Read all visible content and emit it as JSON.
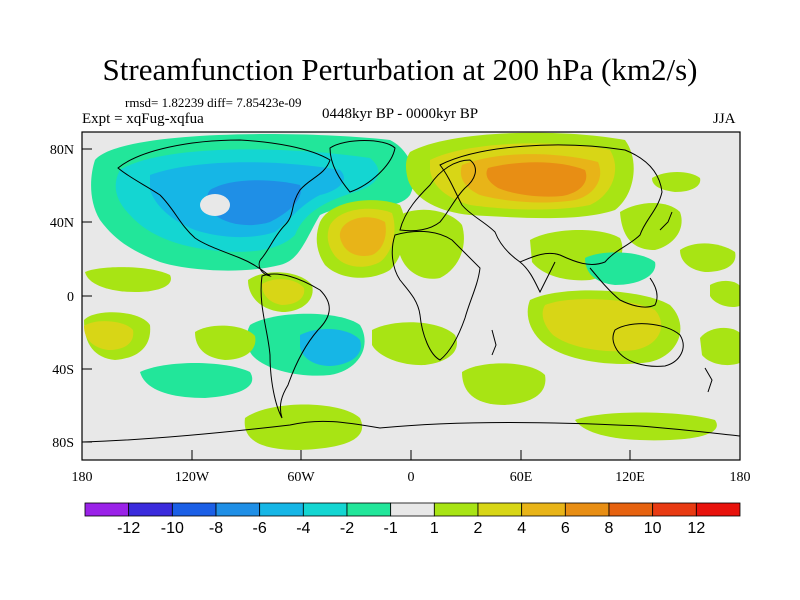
{
  "title": "Streamfunction Perturbation at 200 hPa (km2/s)",
  "stats": {
    "rmsd_line": "rmsd= 1.82239 diff= 7.85423e-09"
  },
  "experiment": "Expt = xqFug-xqfua",
  "period": "0448kyr BP - 0000kyr BP",
  "season": "JJA",
  "axes": {
    "y_labels": [
      "80N",
      "40N",
      "0",
      "40S",
      "80S"
    ],
    "x_labels": [
      "180",
      "120W",
      "60W",
      "0",
      "60E",
      "120E",
      "180"
    ]
  },
  "colorbar": {
    "labels": [
      "-12",
      "-10",
      "-8",
      "-6",
      "-4",
      "-2",
      "-1",
      "1",
      "2",
      "4",
      "6",
      "8",
      "10",
      "12"
    ],
    "colors": [
      "#9a22e8",
      "#3b2bdc",
      "#1b5fe6",
      "#1f8fe6",
      "#16b6e6",
      "#14d6d2",
      "#22e69a",
      "#e8e8e8",
      "#a8e414",
      "#d8d616",
      "#e8b418",
      "#e88e14",
      "#e6620f",
      "#e83a12",
      "#e8120c"
    ]
  },
  "map": {
    "projection": "cylindrical equidistant",
    "field": "streamfunction perturbation",
    "units": "km2/s",
    "level": "200 hPa"
  }
}
